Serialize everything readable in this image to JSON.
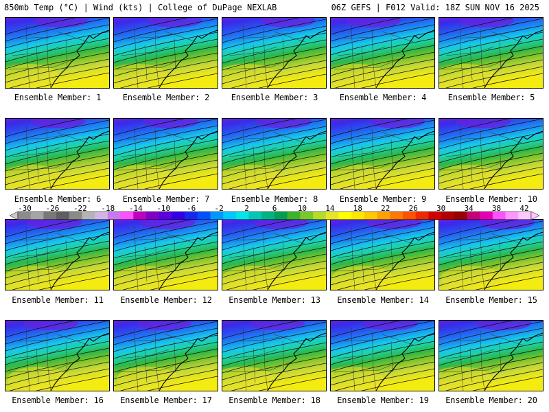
{
  "header": {
    "left": "850mb Temp (°C) | Wind (kts) | College of DuPage NEXLAB",
    "right": "06Z GEFS | F012 Valid: 18Z SUN NOV 16 2025"
  },
  "panels": [
    {
      "label": "Ensemble Member: 1"
    },
    {
      "label": "Ensemble Member: 2"
    },
    {
      "label": "Ensemble Member: 3"
    },
    {
      "label": "Ensemble Member: 4"
    },
    {
      "label": "Ensemble Member: 5"
    },
    {
      "label": "Ensemble Member: 6"
    },
    {
      "label": "Ensemble Member: 7"
    },
    {
      "label": "Ensemble Member: 8"
    },
    {
      "label": "Ensemble Member: 9"
    },
    {
      "label": "Ensemble Member: 10"
    },
    {
      "label": "Ensemble Member: 11"
    },
    {
      "label": "Ensemble Member: 12"
    },
    {
      "label": "Ensemble Member: 13"
    },
    {
      "label": "Ensemble Member: 14"
    },
    {
      "label": "Ensemble Member: 15"
    },
    {
      "label": "Ensemble Member: 16"
    },
    {
      "label": "Ensemble Member: 17"
    },
    {
      "label": "Ensemble Member: 18"
    },
    {
      "label": "Ensemble Member: 19"
    },
    {
      "label": "Ensemble Member: 20"
    }
  ],
  "colorbar": {
    "ticks": [
      "-30",
      "-26",
      "-22",
      "-18",
      "-14",
      "-10",
      "-6",
      "-2",
      "2",
      "6",
      "10",
      "14",
      "18",
      "22",
      "26",
      "30",
      "34",
      "38",
      "42"
    ],
    "colors": [
      "#8c8c8c",
      "#a5a5a5",
      "#787878",
      "#5f5f5f",
      "#8a8a8a",
      "#b4b4b4",
      "#d2b4e6",
      "#c878f0",
      "#ff50ff",
      "#c000c0",
      "#8000c8",
      "#5a00dc",
      "#3200e6",
      "#1428f0",
      "#0050ff",
      "#0096ff",
      "#00c8ff",
      "#00e6e6",
      "#00c8b4",
      "#00b482",
      "#00a050",
      "#3cb428",
      "#78c828",
      "#b4dc28",
      "#e6e628",
      "#ffff00",
      "#ffe600",
      "#ffc800",
      "#ffa000",
      "#ff7800",
      "#ff5000",
      "#f02800",
      "#d20000",
      "#b40000",
      "#960000",
      "#c80078",
      "#e600b4",
      "#ff50ff",
      "#ff96ff",
      "#ffc8ff"
    ]
  }
}
